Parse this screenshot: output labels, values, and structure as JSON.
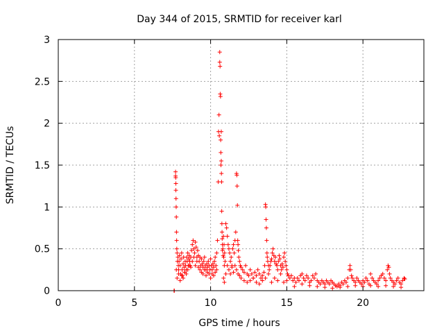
{
  "chart_data": {
    "type": "scatter",
    "title": "Day 344 of 2015, SRMTID for receiver karl",
    "xlabel": "GPS time / hours",
    "ylabel": "SRMTID / TECUs",
    "xlim": [
      0,
      24
    ],
    "ylim": [
      0,
      3
    ],
    "grid": true,
    "xticks": [
      0,
      5,
      10,
      15,
      20
    ],
    "xtick_labels": [
      "0",
      "5",
      "10",
      "15",
      "20"
    ],
    "yticks": [
      0,
      0.5,
      1,
      1.5,
      2,
      2.5,
      3
    ],
    "ytick_labels": [
      "0",
      "0.5",
      "1",
      "1.5",
      "2",
      "2.5",
      "3"
    ],
    "marker": "+",
    "color": "#ff0000",
    "series": [
      {
        "name": "SRMTID",
        "x": [
          7.6,
          7.62,
          7.7,
          7.7,
          7.71,
          7.72,
          7.72,
          7.73,
          7.74,
          7.75,
          7.76,
          7.77,
          7.78,
          7.8,
          7.82,
          7.85,
          7.88,
          7.9,
          7.93,
          7.96,
          8.0,
          8.03,
          8.06,
          8.1,
          8.13,
          8.16,
          8.2,
          8.23,
          8.26,
          8.3,
          8.33,
          8.36,
          8.4,
          8.43,
          8.46,
          8.5,
          8.53,
          8.56,
          8.6,
          8.63,
          8.66,
          8.7,
          8.75,
          8.8,
          8.85,
          8.9,
          8.95,
          9.0,
          9.05,
          9.1,
          9.15,
          9.2,
          9.25,
          9.3,
          9.35,
          9.4,
          9.45,
          9.5,
          9.55,
          9.6,
          9.65,
          9.7,
          9.75,
          9.8,
          9.85,
          9.9,
          9.95,
          10.0,
          10.05,
          10.1,
          10.15,
          10.2,
          10.25,
          10.3,
          10.35,
          10.4,
          10.45,
          10.5,
          10.52,
          10.55,
          10.57,
          10.6,
          10.6,
          10.62,
          10.63,
          10.65,
          10.66,
          10.67,
          10.68,
          10.7,
          10.7,
          10.71,
          10.72,
          10.73,
          10.74,
          10.75,
          10.76,
          10.77,
          10.78,
          10.8,
          10.82,
          10.84,
          10.86,
          10.88,
          10.9,
          10.92,
          10.95,
          11.0,
          11.05,
          11.1,
          11.15,
          11.2,
          11.25,
          11.3,
          11.35,
          11.4,
          11.45,
          11.5,
          11.55,
          11.6,
          11.65,
          11.7,
          11.72,
          11.74,
          11.76,
          11.78,
          11.8,
          11.82,
          11.85,
          11.9,
          11.95,
          12.0,
          12.1,
          12.2,
          12.3,
          12.4,
          12.5,
          12.6,
          12.7,
          12.8,
          12.9,
          13.0,
          13.1,
          13.2,
          13.3,
          13.4,
          13.5,
          13.55,
          13.6,
          13.62,
          13.64,
          13.66,
          13.68,
          13.7,
          13.72,
          13.75,
          13.8,
          13.85,
          13.9,
          13.95,
          14.0,
          14.05,
          14.1,
          14.15,
          14.2,
          14.25,
          14.3,
          14.35,
          14.4,
          14.45,
          14.5,
          14.55,
          14.6,
          14.65,
          14.7,
          14.75,
          14.8,
          14.85,
          14.9,
          14.95,
          15.0,
          15.05,
          15.1,
          15.2,
          15.3,
          15.4,
          15.5,
          15.6,
          15.7,
          15.8,
          15.9,
          16.0,
          16.1,
          16.2,
          16.3,
          16.4,
          16.5,
          16.6,
          16.7,
          16.8,
          16.9,
          17.0,
          17.1,
          17.2,
          17.3,
          17.4,
          17.5,
          17.6,
          17.7,
          17.8,
          17.9,
          18.0,
          18.1,
          18.2,
          18.3,
          18.4,
          18.5,
          18.6,
          18.7,
          18.8,
          18.9,
          19.0,
          19.1,
          19.15,
          19.2,
          19.25,
          19.3,
          19.4,
          19.5,
          19.6,
          19.7,
          19.8,
          19.9,
          20.0,
          20.1,
          20.2,
          20.3,
          20.4,
          20.5,
          20.6,
          20.7,
          20.8,
          20.9,
          21.0,
          21.1,
          21.2,
          21.3,
          21.4,
          21.5,
          21.6,
          21.65,
          21.7,
          21.75,
          21.8,
          21.9,
          22.0,
          22.1,
          22.2,
          22.3,
          22.4,
          22.5,
          22.6,
          22.7,
          22.75,
          7.75,
          7.8,
          7.9,
          8.0,
          8.1,
          8.2,
          8.3,
          8.4,
          8.5,
          8.6,
          8.7,
          8.8,
          8.9,
          9.0,
          9.1,
          9.2,
          9.3,
          9.4,
          9.5,
          9.6,
          9.7,
          9.8,
          9.9,
          10.0,
          10.1,
          10.2,
          10.3,
          10.4,
          10.85,
          10.9,
          11.0,
          11.1,
          11.2,
          11.3,
          11.4,
          11.5,
          11.6,
          11.7,
          11.8,
          11.9,
          12.0,
          12.2,
          12.4,
          12.6,
          12.8,
          13.0,
          13.2,
          13.4,
          13.6,
          13.8,
          14.0,
          14.2,
          14.4,
          14.6,
          14.8,
          15.0,
          15.5,
          16.0,
          16.5,
          17.0,
          17.5,
          18.0,
          18.5,
          19.0,
          19.5,
          20.0,
          20.5,
          21.0,
          21.5,
          22.0,
          22.5
        ],
        "y": [
          0.0,
          0.0,
          1.42,
          1.37,
          1.35,
          1.28,
          1.2,
          1.1,
          1.0,
          0.88,
          0.7,
          0.6,
          0.5,
          0.45,
          0.35,
          0.4,
          0.3,
          0.25,
          0.35,
          0.42,
          0.3,
          0.2,
          0.38,
          0.45,
          0.25,
          0.18,
          0.32,
          0.4,
          0.28,
          0.22,
          0.35,
          0.3,
          0.25,
          0.4,
          0.35,
          0.45,
          0.3,
          0.38,
          0.42,
          0.35,
          0.3,
          0.4,
          0.48,
          0.55,
          0.6,
          0.5,
          0.45,
          0.58,
          0.52,
          0.4,
          0.48,
          0.42,
          0.35,
          0.4,
          0.3,
          0.38,
          0.32,
          0.28,
          0.35,
          0.4,
          0.3,
          0.25,
          0.32,
          0.28,
          0.35,
          0.3,
          0.25,
          0.38,
          0.3,
          0.25,
          0.32,
          0.28,
          0.35,
          0.4,
          0.3,
          0.45,
          0.6,
          1.3,
          1.9,
          2.1,
          1.85,
          2.73,
          2.85,
          2.68,
          2.35,
          2.32,
          1.8,
          1.65,
          1.5,
          1.9,
          1.55,
          1.4,
          1.3,
          0.95,
          0.8,
          0.7,
          0.62,
          0.55,
          0.48,
          0.5,
          0.42,
          0.65,
          0.4,
          0.55,
          0.3,
          0.45,
          0.35,
          0.8,
          0.75,
          0.65,
          0.55,
          0.5,
          0.45,
          0.35,
          0.4,
          0.3,
          0.5,
          0.55,
          0.45,
          0.6,
          0.7,
          1.4,
          1.38,
          1.25,
          1.02,
          0.6,
          0.55,
          0.48,
          0.4,
          0.35,
          0.3,
          0.28,
          0.25,
          0.22,
          0.3,
          0.2,
          0.18,
          0.25,
          0.2,
          0.15,
          0.22,
          0.18,
          0.25,
          0.2,
          0.15,
          0.18,
          0.22,
          0.3,
          1.03,
          1.0,
          0.85,
          0.75,
          0.6,
          0.45,
          0.4,
          0.35,
          0.3,
          0.25,
          0.3,
          0.35,
          0.38,
          0.45,
          0.5,
          0.42,
          0.35,
          0.4,
          0.32,
          0.3,
          0.25,
          0.35,
          0.42,
          0.38,
          0.3,
          0.25,
          0.32,
          0.28,
          0.4,
          0.45,
          0.35,
          0.3,
          0.25,
          0.2,
          0.18,
          0.15,
          0.18,
          0.12,
          0.15,
          0.1,
          0.15,
          0.12,
          0.18,
          0.2,
          0.15,
          0.12,
          0.18,
          0.15,
          0.1,
          0.12,
          0.18,
          0.15,
          0.2,
          0.12,
          0.1,
          0.08,
          0.12,
          0.1,
          0.08,
          0.12,
          0.1,
          0.08,
          0.12,
          0.1,
          0.08,
          0.06,
          0.05,
          0.08,
          0.06,
          0.1,
          0.08,
          0.12,
          0.1,
          0.15,
          0.25,
          0.3,
          0.25,
          0.18,
          0.15,
          0.12,
          0.1,
          0.15,
          0.12,
          0.1,
          0.08,
          0.12,
          0.1,
          0.15,
          0.12,
          0.08,
          0.2,
          0.15,
          0.12,
          0.1,
          0.08,
          0.12,
          0.15,
          0.18,
          0.2,
          0.15,
          0.12,
          0.25,
          0.3,
          0.28,
          0.2,
          0.15,
          0.12,
          0.1,
          0.08,
          0.12,
          0.15,
          0.1,
          0.08,
          0.12,
          0.15,
          0.14,
          0.25,
          0.15,
          0.2,
          0.12,
          0.18,
          0.15,
          0.22,
          0.2,
          0.25,
          0.3,
          0.28,
          0.35,
          0.4,
          0.3,
          0.35,
          0.28,
          0.25,
          0.22,
          0.2,
          0.25,
          0.18,
          0.22,
          0.2,
          0.15,
          0.2,
          0.18,
          0.22,
          0.25,
          0.15,
          0.1,
          0.2,
          0.3,
          0.25,
          0.2,
          0.28,
          0.22,
          0.3,
          0.25,
          0.2,
          0.18,
          0.15,
          0.12,
          0.1,
          0.12,
          0.15,
          0.1,
          0.08,
          0.12,
          0.15,
          0.2,
          0.1,
          0.15,
          0.12,
          0.2,
          0.1,
          0.12,
          0.05,
          0.08,
          0.06,
          0.05,
          0.04,
          0.03,
          0.04,
          0.05,
          0.06,
          0.05,
          0.06,
          0.05,
          0.06,
          0.05,
          0.04
        ]
      }
    ]
  }
}
